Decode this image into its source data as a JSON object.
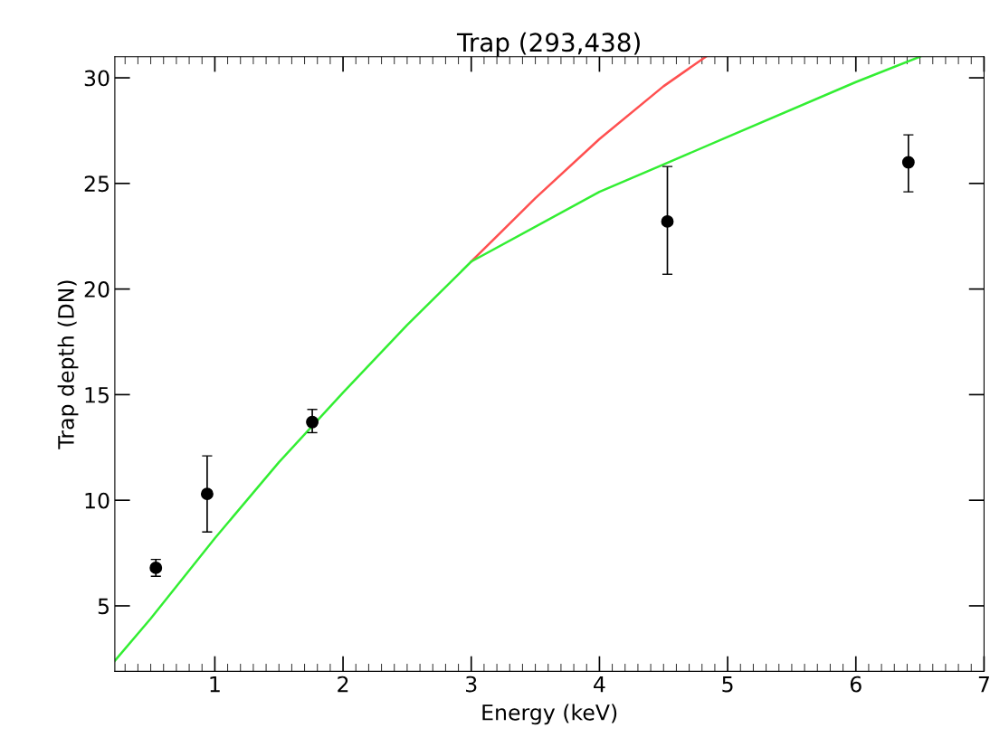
{
  "chart_data": {
    "type": "scatter",
    "title": "Trap (293,438)",
    "xlabel": "Energy (keV)",
    "ylabel": "Trap depth (DN)",
    "xlim": [
      0.22,
      7
    ],
    "ylim": [
      1.9,
      31
    ],
    "xticks": [
      1,
      2,
      3,
      4,
      5,
      6,
      7
    ],
    "yticks": [
      5,
      10,
      15,
      20,
      25,
      30
    ],
    "grid": false,
    "legend": false,
    "series": [
      {
        "type": "scatter",
        "color": "#000000",
        "marker": "circle",
        "x": [
          0.54,
          0.94,
          1.76,
          4.53,
          6.41
        ],
        "values": [
          6.8,
          10.3,
          13.7,
          23.2,
          26.0
        ],
        "errors": [
          [
            6.4,
            7.2
          ],
          [
            8.5,
            12.1
          ],
          [
            13.2,
            14.3
          ],
          [
            20.7,
            25.8
          ],
          [
            24.6,
            27.3
          ]
        ]
      },
      {
        "type": "line",
        "color": "#ff5050",
        "x": [
          3,
          3.5,
          4,
          4.5,
          4.83
        ],
        "values": [
          21.3,
          24.3,
          27.1,
          29.6,
          31.0
        ]
      },
      {
        "type": "line",
        "color": "#33ee33",
        "x": [
          0.22,
          0.5,
          1,
          1.5,
          2,
          2.5,
          3,
          4,
          4.5,
          5,
          6,
          6.5
        ],
        "values": [
          2.4,
          4.4,
          8.2,
          11.8,
          15.1,
          18.3,
          21.3,
          24.6,
          25.9,
          27.2,
          29.8,
          31.0
        ]
      }
    ]
  }
}
